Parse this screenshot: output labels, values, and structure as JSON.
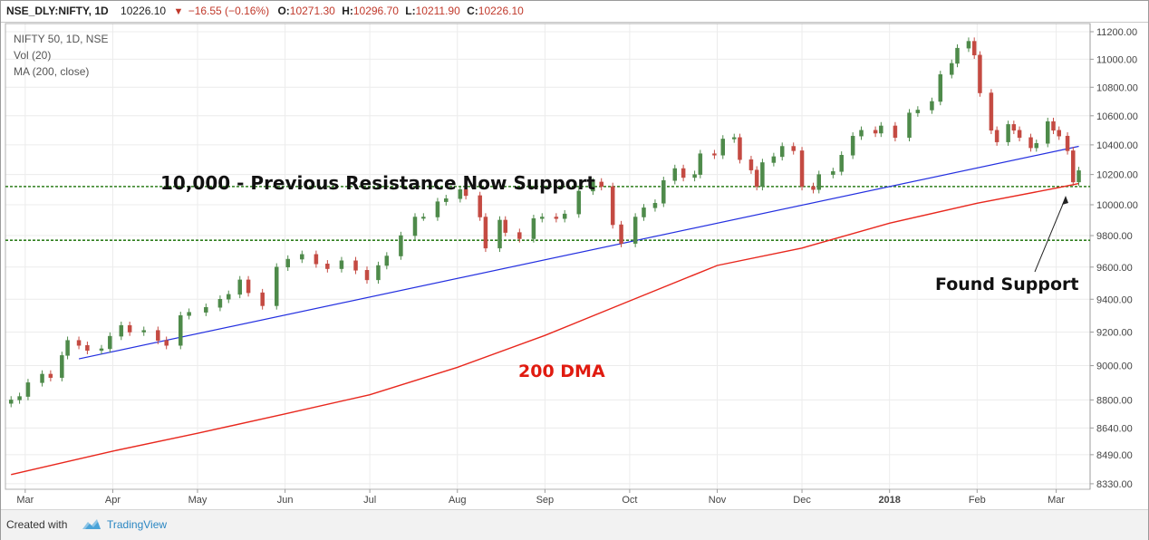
{
  "topbar": {
    "symbol": "NSE_DLY:NIFTY, 1D",
    "last": "10226.10",
    "change_icon": "down-triangle-icon",
    "change": "−16.55 (−0.16%)",
    "o_label": "O:",
    "o_val": "10271.30",
    "h_label": "H:",
    "h_val": "10296.70",
    "l_label": "L:",
    "l_val": "10211.90",
    "c_label": "C:",
    "c_val": "10226.10"
  },
  "legend": [
    "NIFTY 50, 1D, NSE",
    "Vol (20)",
    "MA (200, close)"
  ],
  "annotations": {
    "resistance": "10,000 - Previous Resistance Now Support",
    "dma": "200 DMA",
    "support": "Found Support"
  },
  "footer": {
    "created": "Created with",
    "brand": "TradingView",
    "brand_icon": "tradingview-cloud-icon"
  },
  "colors": {
    "up": "#4e8a4a",
    "down": "#c44a42",
    "ma": "#e8271d",
    "trend": "#2430e0",
    "support_line": "#2e7d1d",
    "dma_text": "#e01b10"
  },
  "chart_data": {
    "type": "candlestick",
    "x_axis_labels": [
      "Mar",
      "Apr",
      "May",
      "Jun",
      "Jul",
      "Aug",
      "Sep",
      "Oct",
      "Nov",
      "Dec",
      "2018",
      "Feb",
      "Mar"
    ],
    "y_axis_labels": [
      "11200.00",
      "11000.00",
      "10800.00",
      "10600.00",
      "10400.00",
      "10200.00",
      "10000.00",
      "9800.00",
      "9600.00",
      "9400.00",
      "9200.00",
      "9000.00",
      "8800.00",
      "8640.00",
      "8490.00",
      "8330.00"
    ],
    "y_scale": "log",
    "ylim": [
      8300,
      11260
    ],
    "series": [
      {
        "name": "NIFTY 50",
        "kind": "ohlc_close",
        "points": [
          [
            "2017-02-24",
            8800
          ],
          [
            "2017-02-27",
            8820
          ],
          [
            "2017-03-02",
            8900
          ],
          [
            "2017-03-07",
            8950
          ],
          [
            "2017-03-10",
            8930
          ],
          [
            "2017-03-14",
            9060
          ],
          [
            "2017-03-16",
            9150
          ],
          [
            "2017-03-20",
            9120
          ],
          [
            "2017-03-23",
            9090
          ],
          [
            "2017-03-28",
            9100
          ],
          [
            "2017-03-31",
            9175
          ],
          [
            "2017-04-04",
            9240
          ],
          [
            "2017-04-07",
            9200
          ],
          [
            "2017-04-12",
            9210
          ],
          [
            "2017-04-17",
            9150
          ],
          [
            "2017-04-20",
            9120
          ],
          [
            "2017-04-25",
            9300
          ],
          [
            "2017-04-28",
            9320
          ],
          [
            "2017-05-04",
            9350
          ],
          [
            "2017-05-09",
            9400
          ],
          [
            "2017-05-12",
            9430
          ],
          [
            "2017-05-16",
            9520
          ],
          [
            "2017-05-19",
            9440
          ],
          [
            "2017-05-24",
            9360
          ],
          [
            "2017-05-29",
            9600
          ],
          [
            "2017-06-02",
            9650
          ],
          [
            "2017-06-07",
            9680
          ],
          [
            "2017-06-12",
            9620
          ],
          [
            "2017-06-16",
            9590
          ],
          [
            "2017-06-21",
            9640
          ],
          [
            "2017-06-26",
            9580
          ],
          [
            "2017-06-30",
            9520
          ],
          [
            "2017-07-04",
            9610
          ],
          [
            "2017-07-07",
            9670
          ],
          [
            "2017-07-12",
            9800
          ],
          [
            "2017-07-17",
            9920
          ],
          [
            "2017-07-20",
            9920
          ],
          [
            "2017-07-25",
            10020
          ],
          [
            "2017-07-28",
            10040
          ],
          [
            "2017-08-02",
            10100
          ],
          [
            "2017-08-04",
            10060
          ],
          [
            "2017-08-09",
            9920
          ],
          [
            "2017-08-11",
            9720
          ],
          [
            "2017-08-16",
            9900
          ],
          [
            "2017-08-18",
            9820
          ],
          [
            "2017-08-23",
            9780
          ],
          [
            "2017-08-28",
            9910
          ],
          [
            "2017-08-31",
            9920
          ],
          [
            "2017-09-05",
            9910
          ],
          [
            "2017-09-08",
            9940
          ],
          [
            "2017-09-13",
            10090
          ],
          [
            "2017-09-18",
            10150
          ],
          [
            "2017-09-21",
            10120
          ],
          [
            "2017-09-25",
            9870
          ],
          [
            "2017-09-28",
            9750
          ],
          [
            "2017-10-03",
            9920
          ],
          [
            "2017-10-06",
            9980
          ],
          [
            "2017-10-10",
            10010
          ],
          [
            "2017-10-13",
            10160
          ],
          [
            "2017-10-17",
            10240
          ],
          [
            "2017-10-20",
            10180
          ],
          [
            "2017-10-24",
            10200
          ],
          [
            "2017-10-26",
            10340
          ],
          [
            "2017-10-31",
            10330
          ],
          [
            "2017-11-03",
            10440
          ],
          [
            "2017-11-07",
            10450
          ],
          [
            "2017-11-09",
            10300
          ],
          [
            "2017-11-13",
            10230
          ],
          [
            "2017-11-15",
            10120
          ],
          [
            "2017-11-17",
            10280
          ],
          [
            "2017-11-21",
            10320
          ],
          [
            "2017-11-24",
            10390
          ],
          [
            "2017-11-28",
            10360
          ],
          [
            "2017-12-01",
            10120
          ],
          [
            "2017-12-05",
            10100
          ],
          [
            "2017-12-07",
            10200
          ],
          [
            "2017-12-12",
            10220
          ],
          [
            "2017-12-15",
            10330
          ],
          [
            "2017-12-19",
            10460
          ],
          [
            "2017-12-22",
            10500
          ],
          [
            "2017-12-27",
            10480
          ],
          [
            "2017-12-29",
            10530
          ],
          [
            "2018-01-03",
            10450
          ],
          [
            "2018-01-08",
            10620
          ],
          [
            "2018-01-11",
            10640
          ],
          [
            "2018-01-16",
            10700
          ],
          [
            "2018-01-19",
            10890
          ],
          [
            "2018-01-23",
            10970
          ],
          [
            "2018-01-25",
            11080
          ],
          [
            "2018-01-29",
            11130
          ],
          [
            "2018-01-31",
            11030
          ],
          [
            "2018-02-02",
            10760
          ],
          [
            "2018-02-06",
            10500
          ],
          [
            "2018-02-08",
            10420
          ],
          [
            "2018-02-12",
            10540
          ],
          [
            "2018-02-14",
            10500
          ],
          [
            "2018-02-16",
            10450
          ],
          [
            "2018-02-20",
            10380
          ],
          [
            "2018-02-22",
            10410
          ],
          [
            "2018-02-26",
            10560
          ],
          [
            "2018-02-28",
            10500
          ],
          [
            "2018-03-02",
            10460
          ],
          [
            "2018-03-05",
            10360
          ],
          [
            "2018-03-07",
            10150
          ],
          [
            "2018-03-09",
            10226
          ]
        ]
      },
      {
        "name": "MA (200, close)",
        "kind": "line",
        "points": [
          [
            "2017-02-24",
            8380
          ],
          [
            "2017-04-01",
            8510
          ],
          [
            "2017-05-01",
            8610
          ],
          [
            "2017-06-01",
            8720
          ],
          [
            "2017-07-01",
            8830
          ],
          [
            "2017-08-01",
            8990
          ],
          [
            "2017-09-01",
            9180
          ],
          [
            "2017-10-01",
            9390
          ],
          [
            "2017-11-01",
            9610
          ],
          [
            "2017-12-01",
            9720
          ],
          [
            "2018-01-01",
            9880
          ],
          [
            "2018-02-01",
            10010
          ],
          [
            "2018-03-01",
            10110
          ],
          [
            "2018-03-09",
            10140
          ]
        ]
      },
      {
        "kind": "trendline",
        "points": [
          [
            "2017-03-20",
            9040
          ],
          [
            "2018-03-09",
            10390
          ]
        ]
      }
    ],
    "horizontal_lines": [
      10120,
      9770
    ],
    "grid": true,
    "legend": "top-left"
  }
}
